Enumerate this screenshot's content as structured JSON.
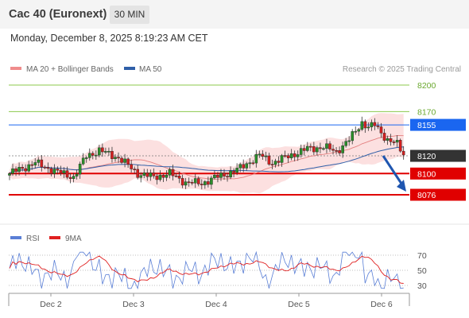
{
  "header": {
    "title": "Cac 40 (Euronext)",
    "timeframe": "30 MIN"
  },
  "datetime": "Monday, December 8, 2025 8:19:23 AM CET",
  "legend": {
    "main": [
      {
        "label": "MA 20 + Bollinger Bands",
        "color": "#f08c8c"
      },
      {
        "label": "MA 50",
        "color": "#2f5fa8"
      }
    ],
    "credit": "Research © 2025 Trading Central",
    "rsi": [
      {
        "label": "RSI",
        "color": "#5a7fd6"
      },
      {
        "label": "9MA",
        "color": "#e02020"
      }
    ]
  },
  "chart_data": [
    {
      "type": "candlestick",
      "x_labels": [
        "Dec 2",
        "Dec 3",
        "Dec 4",
        "Dec 5",
        "Dec 6"
      ],
      "ylim": [
        8060,
        8210
      ],
      "levels": [
        {
          "value": "8200",
          "kind": "resistance",
          "color": "#8cc84b"
        },
        {
          "value": "8170",
          "kind": "resistance",
          "color": "#8cc84b"
        },
        {
          "value": "8155",
          "kind": "pivot",
          "color": "#1a66f0"
        },
        {
          "value": "8120",
          "kind": "last",
          "color": "#333333"
        },
        {
          "value": "8100",
          "kind": "support",
          "color": "#e00000"
        },
        {
          "value": "8076",
          "kind": "support",
          "color": "#e00000"
        }
      ],
      "forecast": {
        "direction": "down",
        "target": 8076
      }
    },
    {
      "type": "line",
      "name": "RSI",
      "x_labels": [
        "Dec 2",
        "Dec 3",
        "Dec 4",
        "Dec 5",
        "Dec 6"
      ],
      "y_ticks": [
        "70",
        "50",
        "30"
      ],
      "ylim": [
        20,
        80
      ],
      "series": [
        "RSI",
        "9MA"
      ]
    }
  ]
}
